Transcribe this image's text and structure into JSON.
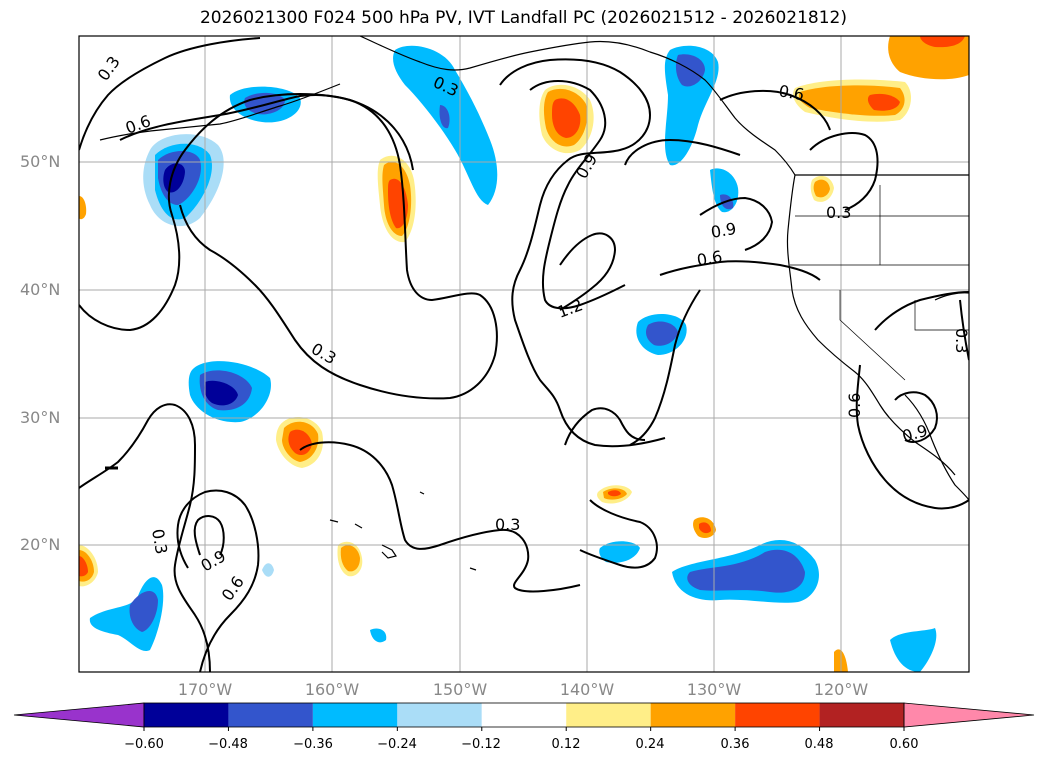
{
  "title": "2026021300 F024 500 hPa PV, IVT Landfall PC (2026021512 - 2026021812)",
  "lat_labels": [
    "50°N",
    "40°N",
    "30°N",
    "20°N"
  ],
  "lon_labels": [
    "170°W",
    "160°W",
    "150°W",
    "140°W",
    "130°W",
    "120°W"
  ],
  "contour_labels": [
    "0.3",
    "0.6",
    "0.9",
    "1.2"
  ],
  "colorbar": {
    "ticks": [
      "−0.60",
      "−0.48",
      "−0.36",
      "−0.24",
      "−0.12",
      "0.12",
      "0.24",
      "0.36",
      "0.48",
      "0.60"
    ],
    "colors": [
      "#9933cc",
      "#000099",
      "#3355cc",
      "#00bbff",
      "#aaddf7",
      "#ffffff",
      "#ffee88",
      "#ffa200",
      "#ff4400",
      "#b22222",
      "#ff88aa"
    ]
  },
  "fill_colors": {
    "dark_blue": "#000099",
    "blue": "#3355cc",
    "cyan": "#00bbff",
    "light_blue": "#aaddf7",
    "yellow": "#ffee88",
    "orange": "#ffa200",
    "red": "#ff4400"
  }
}
